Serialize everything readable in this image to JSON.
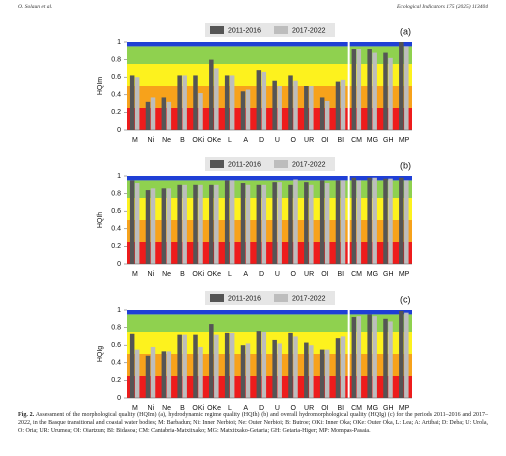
{
  "header": {
    "authors": "O. Solaun et al.",
    "journal": "Ecological Indicators 175 (2025) 113404"
  },
  "caption": {
    "label": "Fig. 2.",
    "text": "Assessment of the morphological quality (HQIm) (a), hydrodynamic regime quality (HQIh) (b) and overall hydromorphological quality (HQIg) (c) for the periods 2011–2016 and 2017–2022, in the Basque transitional and coastal water bodies; M: Barbadun; Ni: Inner Nerbioi; Ne: Outer Nerbioi; B: Butroe; OKi: Inner Oka; OKe: Outer Oka, L: Lea; A: Artibai; D: Deba; U: Urola, O: Oria; UR: Urumea; OI: Oiartzun; BI: Bidasoa; CM: Cantabria-Matxitxako; MG: Matxitxako-Getaria; GH: Getaria-Higer; MP: Mompas-Pasaia."
  },
  "chart_data": [
    {
      "type": "bar",
      "panel_label": "(a)",
      "y_label": "HQIm",
      "categories": [
        "M",
        "Ni",
        "Ne",
        "B",
        "OKi",
        "OKe",
        "L",
        "A",
        "D",
        "U",
        "O",
        "UR",
        "OI",
        "BI",
        "CM",
        "MG",
        "GH",
        "MP"
      ],
      "series": [
        {
          "name": "2011-2016",
          "color": "#555555",
          "values": [
            0.62,
            0.32,
            0.37,
            0.62,
            0.62,
            0.8,
            0.62,
            0.44,
            0.68,
            0.56,
            0.62,
            0.5,
            0.37,
            0.55,
            0.92,
            0.92,
            0.88,
            1
          ]
        },
        {
          "name": "2017-2022",
          "color": "#bdbdbd",
          "values": [
            0.6,
            0.37,
            0.32,
            0.62,
            0.42,
            0.7,
            0.62,
            0.46,
            0.66,
            0.5,
            0.56,
            0.5,
            0.33,
            0.57,
            0.92,
            0.88,
            0.82,
            0.95
          ]
        }
      ],
      "bands": [
        {
          "from": 0,
          "to": 0.25,
          "color": "#ee1c1c"
        },
        {
          "from": 0.25,
          "to": 0.5,
          "color": "#f7a21b"
        },
        {
          "from": 0.5,
          "to": 0.75,
          "color": "#fdf21e"
        },
        {
          "from": 0.75,
          "to": 0.95,
          "color": "#8fd14f"
        },
        {
          "from": 0.95,
          "to": 1,
          "color": "#1f3fd6"
        }
      ],
      "ylim": [
        0,
        1
      ],
      "yticks": [
        0,
        0.2,
        0.4,
        0.6,
        0.8,
        1
      ]
    },
    {
      "type": "bar",
      "panel_label": "(b)",
      "y_label": "HQIh",
      "categories": [
        "M",
        "Ni",
        "Ne",
        "B",
        "OKi",
        "OKe",
        "L",
        "A",
        "D",
        "U",
        "O",
        "UR",
        "OI",
        "BI",
        "CM",
        "MG",
        "GH",
        "MP"
      ],
      "series": [
        {
          "name": "2011-2016",
          "color": "#555555",
          "values": [
            0.95,
            0.84,
            0.86,
            0.9,
            0.9,
            0.9,
            0.95,
            0.92,
            0.9,
            0.93,
            0.9,
            0.93,
            0.95,
            0.95,
            0.98,
            0.98,
            0.97,
            0.98
          ]
        },
        {
          "name": "2017-2022",
          "color": "#bdbdbd",
          "values": [
            0.92,
            0.86,
            0.86,
            0.9,
            0.9,
            0.9,
            0.95,
            0.9,
            0.9,
            0.93,
            0.96,
            0.9,
            0.92,
            0.95,
            0.95,
            0.98,
            0.97,
            0.95
          ]
        }
      ],
      "bands": [
        {
          "from": 0,
          "to": 0.25,
          "color": "#ee1c1c"
        },
        {
          "from": 0.25,
          "to": 0.5,
          "color": "#f7a21b"
        },
        {
          "from": 0.5,
          "to": 0.75,
          "color": "#fdf21e"
        },
        {
          "from": 0.75,
          "to": 0.95,
          "color": "#8fd14f"
        },
        {
          "from": 0.95,
          "to": 1,
          "color": "#1f3fd6"
        }
      ],
      "ylim": [
        0,
        1
      ],
      "yticks": [
        0,
        0.2,
        0.4,
        0.6,
        0.8,
        1
      ]
    },
    {
      "type": "bar",
      "panel_label": "(c)",
      "y_label": "HQIg",
      "categories": [
        "M",
        "Ni",
        "Ne",
        "B",
        "OKi",
        "OKe",
        "L",
        "A",
        "D",
        "U",
        "O",
        "UR",
        "OI",
        "BI",
        "CM",
        "MG",
        "GH",
        "MP"
      ],
      "series": [
        {
          "name": "2011-2016",
          "color": "#555555",
          "values": [
            0.73,
            0.48,
            0.53,
            0.72,
            0.72,
            0.84,
            0.74,
            0.6,
            0.76,
            0.66,
            0.74,
            0.63,
            0.55,
            0.68,
            0.92,
            0.95,
            0.9,
            0.99
          ]
        },
        {
          "name": "2017-2022",
          "color": "#bdbdbd",
          "values": [
            0.55,
            0.58,
            0.53,
            0.72,
            0.58,
            0.72,
            0.74,
            0.62,
            0.75,
            0.62,
            0.7,
            0.6,
            0.55,
            0.7,
            0.93,
            0.93,
            0.87,
            0.97
          ]
        }
      ],
      "bands": [
        {
          "from": 0,
          "to": 0.25,
          "color": "#ee1c1c"
        },
        {
          "from": 0.25,
          "to": 0.5,
          "color": "#f7a21b"
        },
        {
          "from": 0.5,
          "to": 0.75,
          "color": "#fdf21e"
        },
        {
          "from": 0.75,
          "to": 0.95,
          "color": "#8fd14f"
        },
        {
          "from": 0.95,
          "to": 1,
          "color": "#1f3fd6"
        }
      ],
      "ylim": [
        0,
        1
      ],
      "yticks": [
        0,
        0.2,
        0.4,
        0.6,
        0.8,
        1
      ]
    }
  ]
}
